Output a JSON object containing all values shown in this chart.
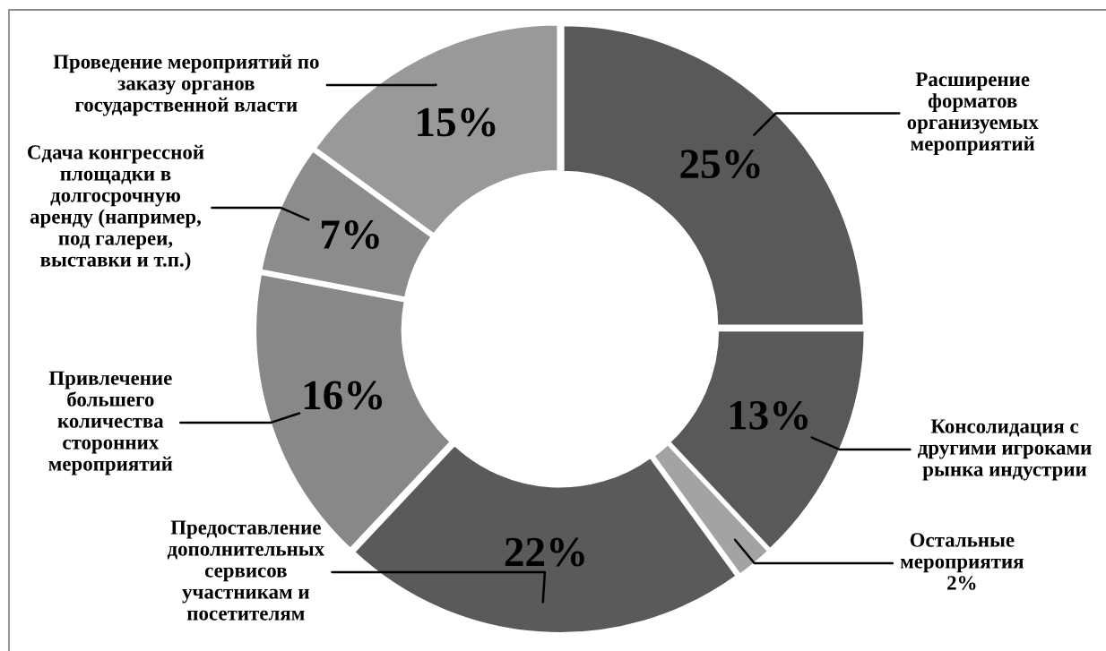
{
  "chart_data": {
    "type": "donut",
    "categories": [
      "Расширение\nформатов\nорганизуемых\nмероприятий",
      "Консолидация с\nдругими игроками\nрынка индустрии",
      "Остальные\nмероприятия\n2%",
      "Предоставление\nдополнительных\nсервисов\nучастникам и\nпосетителям",
      "Привлечение\nбольшего\nколичества\nсторонних\nмероприятий",
      "Сдача конгрессной\nплощадки в\nдолгосрочную\nаренду (например,\nпод галереи,\nвыставки и т.п.)",
      "Проведение мероприятий по\nзаказу органов\nгосударственной власти"
    ],
    "values": [
      25,
      13,
      2,
      22,
      16,
      7,
      15
    ],
    "colors": [
      "#595959",
      "#595959",
      "#a3a3a3",
      "#5a5a5a",
      "#888888",
      "#8c8c8c",
      "#999999"
    ],
    "value_labels": [
      "25%",
      "13%",
      null,
      "22%",
      "16%",
      "7%",
      "15%"
    ]
  }
}
